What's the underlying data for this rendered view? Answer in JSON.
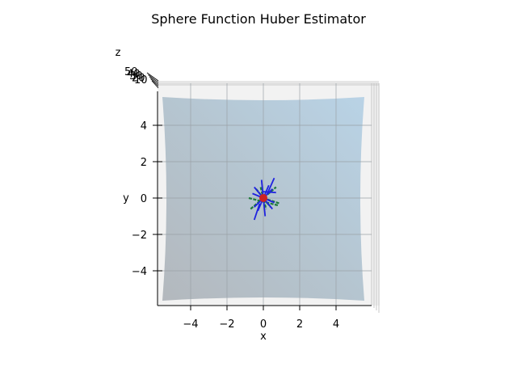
{
  "chart_data": {
    "type": "surface-3d",
    "title": "Sphere Function Huber Estimator",
    "xlabel": "x",
    "ylabel": "y",
    "zlabel": "z",
    "x_ticks": [
      "−4",
      "−2",
      "0",
      "2",
      "4"
    ],
    "y_ticks": [
      "−4",
      "−2",
      "0",
      "2",
      "4"
    ],
    "z_ticks": [
      "50",
      "40",
      "30",
      "20",
      "10"
    ],
    "xlim": [
      -5.5,
      5.5
    ],
    "ylim": [
      -5.5,
      5.5
    ],
    "view": "top-down",
    "grid": true,
    "surface_color": "#b8cee0",
    "estimator_point": {
      "x": 0,
      "y": 0,
      "color": "#cc2222"
    },
    "blue_segments": [
      {
        "x1": -0.6,
        "y1": 0.25,
        "x2": 0.6,
        "y2": -0.25
      },
      {
        "x1": -0.3,
        "y1": -0.7,
        "x2": 0.3,
        "y2": 0.7
      },
      {
        "x1": 0.1,
        "y1": -1.0,
        "x2": -0.1,
        "y2": 1.0
      },
      {
        "x1": -0.5,
        "y1": -0.5,
        "x2": 0.5,
        "y2": 0.5
      },
      {
        "x1": -0.5,
        "y1": 0.6,
        "x2": 0.5,
        "y2": -0.6
      },
      {
        "x1": 0.2,
        "y1": 0.2,
        "x2": 0.6,
        "y2": 1.1
      },
      {
        "x1": -0.2,
        "y1": -0.3,
        "x2": -0.5,
        "y2": -1.2
      },
      {
        "x1": 0.0,
        "y1": 0.35,
        "x2": 0.7,
        "y2": 0.3
      }
    ],
    "green_segments": [
      {
        "x1": -0.7,
        "y1": -0.6,
        "x2": 0.7,
        "y2": 0.6
      },
      {
        "x1": -0.8,
        "y1": 0.0,
        "x2": 0.8,
        "y2": -0.4
      },
      {
        "x1": -0.4,
        "y1": 0.5,
        "x2": 0.4,
        "y2": -0.5
      },
      {
        "x1": -0.15,
        "y1": 0.6,
        "x2": 0.15,
        "y2": -0.6
      },
      {
        "x1": 0.0,
        "y1": 0.0,
        "x2": 0.9,
        "y2": -0.3
      }
    ]
  }
}
